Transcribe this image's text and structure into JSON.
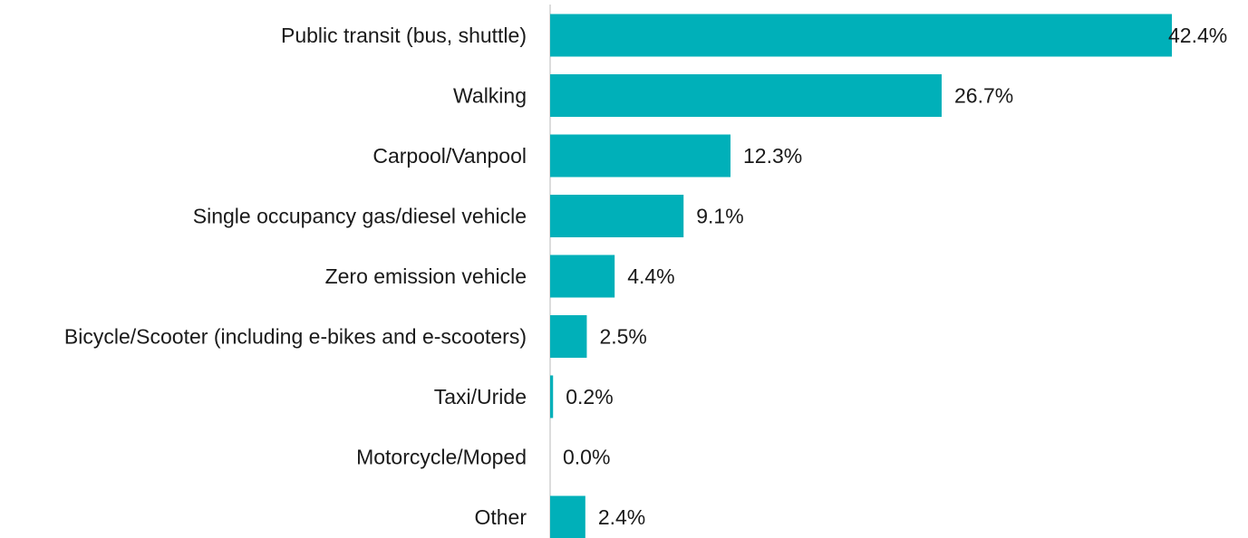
{
  "chart_data": {
    "type": "bar",
    "orientation": "horizontal",
    "categories": [
      "Public transit (bus, shuttle)",
      "Walking",
      "Carpool/Vanpool",
      "Single occupancy gas/diesel vehicle",
      "Zero emission vehicle",
      "Bicycle/Scooter (including e-bikes and e-scooters)",
      "Taxi/Uride",
      "Motorcycle/Moped",
      "Other"
    ],
    "values": [
      42.4,
      26.7,
      12.3,
      9.1,
      4.4,
      2.5,
      0.2,
      0.0,
      2.4
    ],
    "value_labels": [
      "42.4%",
      "26.7%",
      "12.3%",
      "9.1%",
      "4.4%",
      "2.5%",
      "0.2%",
      "0.0%",
      "2.4%"
    ],
    "color": "#00b0b9"
  }
}
